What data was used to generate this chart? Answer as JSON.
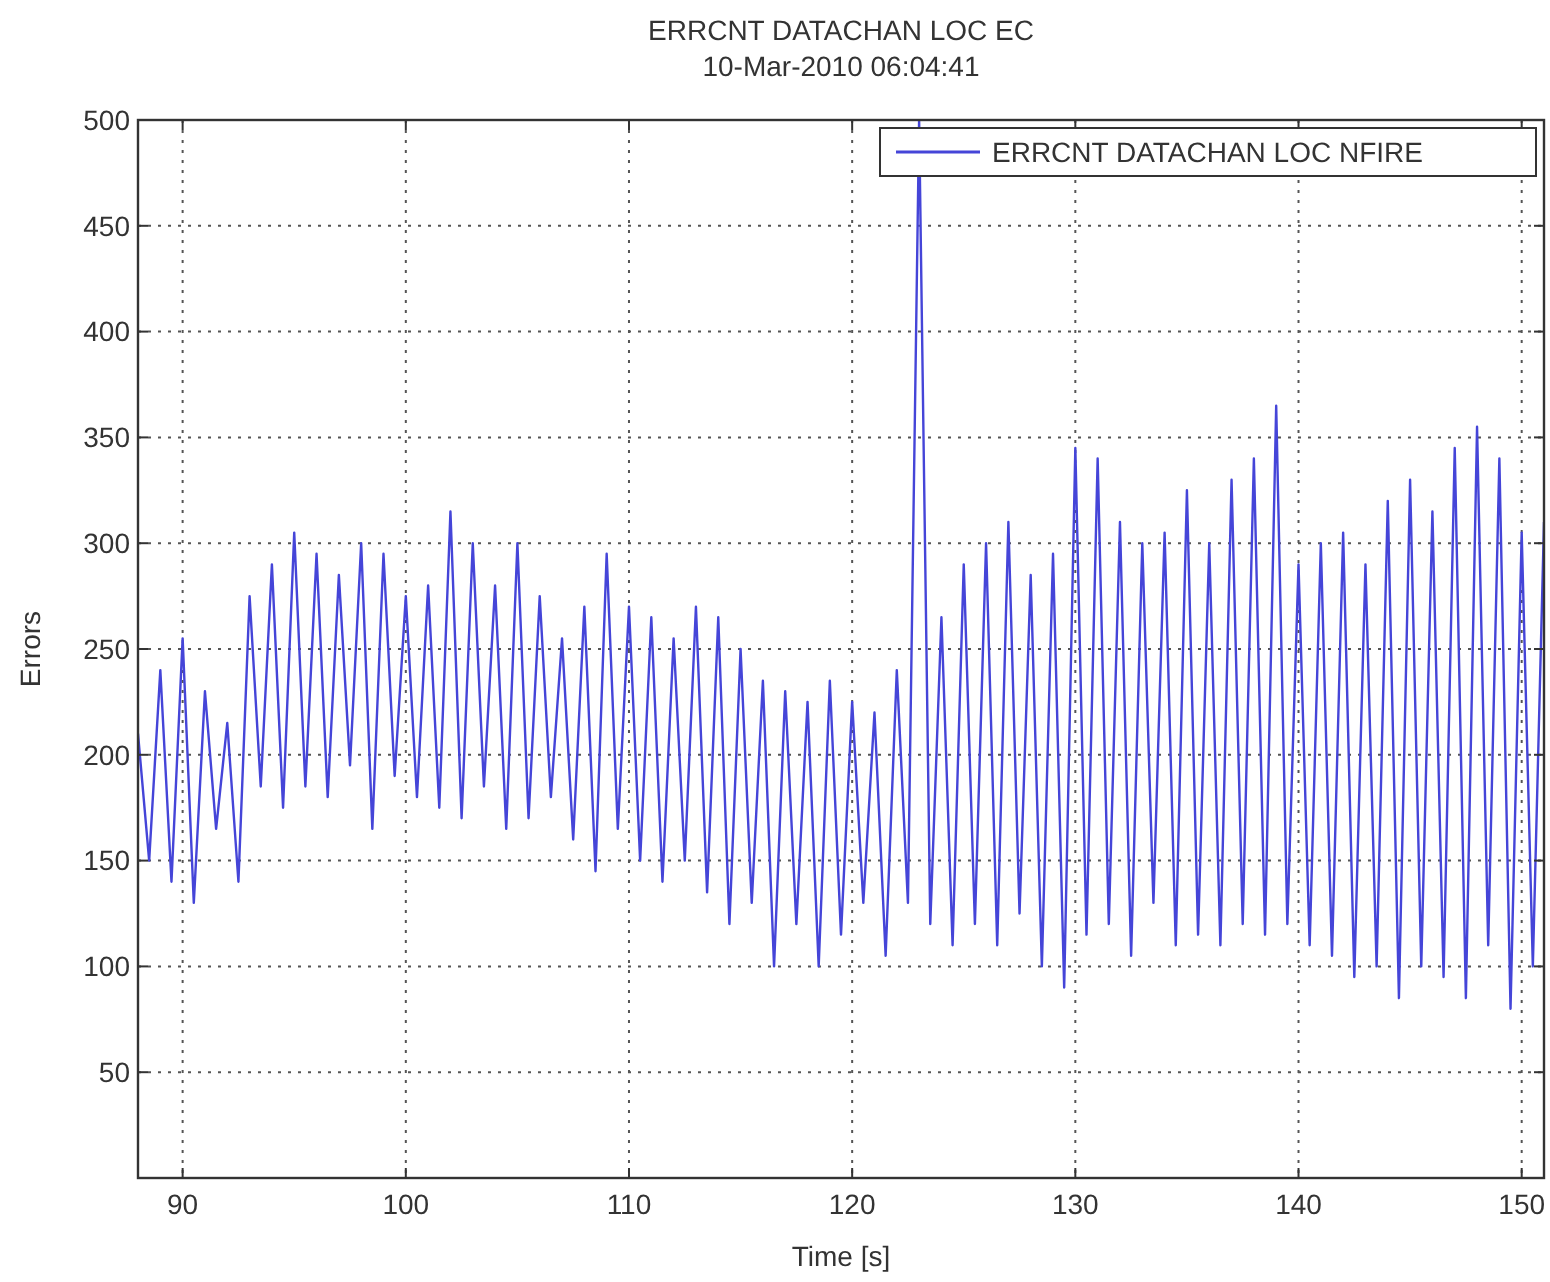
{
  "chart_data": {
    "type": "line",
    "title": "ERRCNT DATACHAN LOC EC",
    "subtitle": "10-Mar-2010 06:04:41",
    "xlabel": "Time [s]",
    "ylabel": "Errors",
    "x": [
      88,
      88.5,
      89,
      89.5,
      90,
      90.5,
      91,
      91.5,
      92,
      92.5,
      93,
      93.5,
      94,
      94.5,
      95,
      95.5,
      96,
      96.5,
      97,
      97.5,
      98,
      98.5,
      99,
      99.5,
      100,
      100.5,
      101,
      101.5,
      102,
      102.5,
      103,
      103.5,
      104,
      104.5,
      105,
      105.5,
      106,
      106.5,
      107,
      107.5,
      108,
      108.5,
      109,
      109.5,
      110,
      110.5,
      111,
      111.5,
      112,
      112.5,
      113,
      113.5,
      114,
      114.5,
      115,
      115.5,
      116,
      116.5,
      117,
      117.5,
      118,
      118.5,
      119,
      119.5,
      120,
      120.5,
      121,
      121.5,
      122,
      122.5,
      123,
      123.5,
      124,
      124.5,
      125,
      125.5,
      126,
      126.5,
      127,
      127.5,
      128,
      128.5,
      129,
      129.5,
      130,
      130.5,
      131,
      131.5,
      132,
      132.5,
      133,
      133.5,
      134,
      134.5,
      135,
      135.5,
      136,
      136.5,
      137,
      137.5,
      138,
      138.5,
      139,
      139.5,
      140,
      140.5,
      141,
      141.5,
      142,
      142.5,
      143,
      143.5,
      144,
      144.5,
      145,
      145.5,
      146,
      146.5,
      147,
      147.5,
      148,
      148.5,
      149,
      149.5,
      150,
      150.5,
      151
    ],
    "series": [
      {
        "name": "ERRCNT DATACHAN LOC NFIRE",
        "color": "#4545d8",
        "values": [
          210,
          150,
          240,
          140,
          255,
          130,
          230,
          165,
          215,
          140,
          275,
          185,
          290,
          175,
          305,
          185,
          295,
          180,
          285,
          195,
          300,
          165,
          295,
          190,
          275,
          180,
          280,
          175,
          315,
          170,
          300,
          185,
          280,
          165,
          300,
          170,
          275,
          180,
          255,
          160,
          270,
          145,
          295,
          165,
          270,
          150,
          265,
          140,
          255,
          150,
          270,
          135,
          265,
          120,
          250,
          130,
          235,
          100,
          230,
          120,
          225,
          100,
          235,
          115,
          225,
          130,
          220,
          105,
          240,
          130,
          500,
          120,
          265,
          110,
          290,
          120,
          300,
          110,
          310,
          125,
          285,
          100,
          295,
          90,
          345,
          115,
          340,
          120,
          310,
          105,
          300,
          130,
          305,
          110,
          325,
          115,
          300,
          110,
          330,
          120,
          340,
          115,
          365,
          120,
          290,
          110,
          300,
          105,
          305,
          95,
          290,
          100,
          320,
          85,
          330,
          100,
          315,
          95,
          345,
          85,
          355,
          110,
          340,
          80,
          305,
          100,
          310
        ]
      }
    ],
    "xlim": [
      88,
      151
    ],
    "ylim": [
      0,
      500
    ],
    "xticks": [
      90,
      100,
      110,
      120,
      130,
      140,
      150
    ],
    "yticks": [
      50,
      100,
      150,
      200,
      250,
      300,
      350,
      400,
      450,
      500
    ],
    "grid": true,
    "legend": "top right",
    "line_style": "solid",
    "marker": "none"
  }
}
